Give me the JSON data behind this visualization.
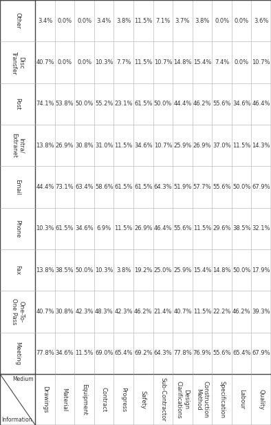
{
  "col_headers": [
    "Meeting",
    "One-To-\nOne Pass",
    "Fax",
    "Phone",
    "Email",
    "Intra/\nExtranet",
    "Post",
    "Disc\nTransfer",
    "Other"
  ],
  "row_headers": [
    "Drawings",
    "Material",
    "Equipment",
    "Contract",
    "Progress",
    "Safety",
    "Sub-Contractor",
    "Design\nClarifications",
    "Construction\nMethod",
    "Specification",
    "Labour",
    "Quality"
  ],
  "data": [
    [
      "77.8%",
      "40.7%",
      "13.8%",
      "10.3%",
      "44.4%",
      "13.8%",
      "74.1%",
      "40.7%",
      "3.4%"
    ],
    [
      "34.6%",
      "30.8%",
      "38.5%",
      "61.5%",
      "73.1%",
      "26.9%",
      "53.8%",
      "0.0%",
      "0.0%"
    ],
    [
      "11.5%",
      "42.3%",
      "50.0%",
      "34.6%",
      "63.4%",
      "30.8%",
      "50.0%",
      "0.0%",
      "0.0%"
    ],
    [
      "69.0%",
      "48.3%",
      "10.3%",
      "6.9%",
      "58.6%",
      "31.0%",
      "55.2%",
      "10.3%",
      "3.4%"
    ],
    [
      "65.4%",
      "42.3%",
      "3.8%",
      "11.5%",
      "61.5%",
      "11.5%",
      "23.1%",
      "7.7%",
      "3.8%"
    ],
    [
      "69.2%",
      "46.2%",
      "19.2%",
      "26.9%",
      "61.5%",
      "34.6%",
      "61.5%",
      "11.5%",
      "11.5%"
    ],
    [
      "64.3%",
      "21.4%",
      "25.0%",
      "46.4%",
      "64.3%",
      "10.7%",
      "50.0%",
      "10.7%",
      "7.1%"
    ],
    [
      "77.8%",
      "40.7%",
      "25.9%",
      "55.6%",
      "51.9%",
      "25.9%",
      "44.4%",
      "14.8%",
      "3.7%"
    ],
    [
      "76.9%",
      "11.5%",
      "15.4%",
      "11.5%",
      "57.7%",
      "26.9%",
      "46.2%",
      "15.4%",
      "3.8%"
    ],
    [
      "55.6%",
      "22.2%",
      "14.8%",
      "29.6%",
      "55.6%",
      "37.0%",
      "55.6%",
      "7.4%",
      "0.0%"
    ],
    [
      "65.4%",
      "46.2%",
      "50.0%",
      "38.5%",
      "50.0%",
      "11.5%",
      "34.6%",
      "0.0%",
      "0.0%"
    ],
    [
      "67.9%",
      "39.3%",
      "17.9%",
      "32.1%",
      "67.9%",
      "14.3%",
      "46.4%",
      "10.7%",
      "3.6%"
    ]
  ],
  "line_color": "#aaaaaa",
  "border_color": "#444444",
  "text_color": "#333333",
  "data_fontsize": 6.0,
  "header_fontsize": 6.0,
  "diag_label_fontsize": 5.5
}
